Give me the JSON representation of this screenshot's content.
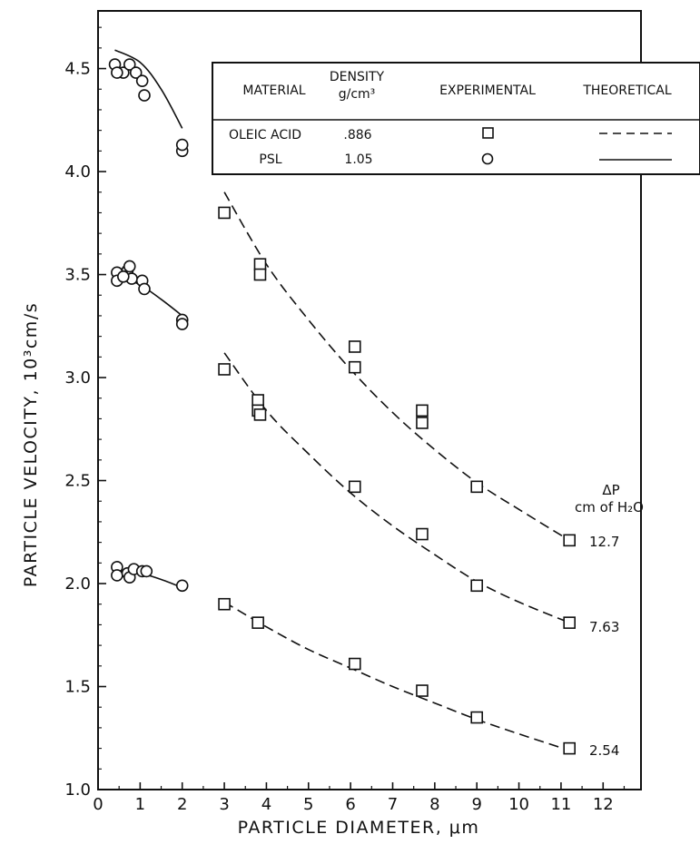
{
  "chart_data": {
    "type": "scatter",
    "xlabel": "PARTICLE DIAMETER,  μm",
    "ylabel": "PARTICLE VELOCITY, 10³cm/s",
    "xlim": [
      0,
      12.9
    ],
    "ylim": [
      1.0,
      4.78
    ],
    "x_ticks": [
      0,
      1,
      2,
      3,
      4,
      5,
      6,
      7,
      8,
      9,
      10,
      11,
      12
    ],
    "x_tick_labels": [
      "0",
      "1",
      "2",
      "3",
      "4",
      "5",
      "6",
      "7",
      "8",
      "9",
      "10",
      "11",
      "12"
    ],
    "y_ticks": [
      1.0,
      1.5,
      2.0,
      2.5,
      3.0,
      3.5,
      4.0,
      4.5
    ],
    "y_tick_labels": [
      "1.0",
      "1.5",
      "2.0",
      "2.5",
      "3.0",
      "3.5",
      "4.0",
      "4.5"
    ],
    "legend": {
      "headers": [
        "MATERIAL",
        "DENSITY",
        "g/cm³",
        "EXPERIMENTAL",
        "THEORETICAL"
      ],
      "rows": [
        {
          "material": "OLEIC ACID",
          "density": ".886",
          "marker": "square",
          "line": "dashed"
        },
        {
          "material": "PSL",
          "density": "1.05",
          "marker": "circle",
          "line": "solid"
        }
      ]
    },
    "pressure_header": {
      "symbol": "ΔP",
      "unit": "cm of H₂O"
    },
    "series": [
      {
        "pressure": "12.7",
        "psl_points": [
          [
            0.4,
            4.52
          ],
          [
            0.6,
            4.48
          ],
          [
            0.75,
            4.52
          ],
          [
            0.9,
            4.48
          ],
          [
            1.05,
            4.44
          ],
          [
            1.1,
            4.37
          ],
          [
            0.45,
            4.48
          ],
          [
            2.0,
            4.1
          ],
          [
            2.0,
            4.13
          ]
        ],
        "psl_theory": [
          [
            0.4,
            4.59
          ],
          [
            1.0,
            4.53
          ],
          [
            1.5,
            4.4
          ],
          [
            2.0,
            4.21
          ]
        ],
        "oleic_points": [
          [
            3.0,
            3.8
          ],
          [
            3.85,
            3.55
          ],
          [
            3.85,
            3.5
          ],
          [
            6.1,
            3.15
          ],
          [
            6.1,
            3.05
          ],
          [
            7.7,
            2.84
          ],
          [
            7.7,
            2.78
          ],
          [
            9.0,
            2.47
          ],
          [
            11.2,
            2.21
          ]
        ],
        "oleic_theory": [
          [
            3.0,
            3.9
          ],
          [
            4.0,
            3.55
          ],
          [
            5.0,
            3.28
          ],
          [
            6.0,
            3.04
          ],
          [
            7.0,
            2.83
          ],
          [
            8.0,
            2.65
          ],
          [
            9.0,
            2.49
          ],
          [
            10.0,
            2.36
          ],
          [
            11.2,
            2.21
          ]
        ]
      },
      {
        "pressure": "7.63",
        "psl_points": [
          [
            0.45,
            3.51
          ],
          [
            0.45,
            3.47
          ],
          [
            0.7,
            3.52
          ],
          [
            0.75,
            3.54
          ],
          [
            0.8,
            3.48
          ],
          [
            1.05,
            3.47
          ],
          [
            1.1,
            3.43
          ],
          [
            0.6,
            3.49
          ],
          [
            2.0,
            3.28
          ],
          [
            2.0,
            3.26
          ]
        ],
        "psl_theory": [
          [
            0.5,
            3.49
          ],
          [
            1.0,
            3.45
          ],
          [
            1.5,
            3.38
          ],
          [
            2.0,
            3.3
          ]
        ],
        "oleic_points": [
          [
            3.0,
            3.04
          ],
          [
            3.8,
            2.89
          ],
          [
            3.8,
            2.84
          ],
          [
            3.85,
            2.82
          ],
          [
            6.1,
            2.47
          ],
          [
            7.7,
            2.24
          ],
          [
            9.0,
            1.99
          ],
          [
            11.2,
            1.81
          ]
        ],
        "oleic_theory": [
          [
            3.0,
            3.12
          ],
          [
            4.0,
            2.84
          ],
          [
            5.0,
            2.63
          ],
          [
            6.0,
            2.44
          ],
          [
            7.0,
            2.28
          ],
          [
            8.0,
            2.14
          ],
          [
            9.0,
            2.01
          ],
          [
            10.0,
            1.91
          ],
          [
            11.2,
            1.81
          ]
        ]
      },
      {
        "pressure": "2.54",
        "psl_points": [
          [
            0.45,
            2.08
          ],
          [
            0.45,
            2.04
          ],
          [
            0.7,
            2.05
          ],
          [
            0.75,
            2.03
          ],
          [
            0.85,
            2.07
          ],
          [
            1.05,
            2.06
          ],
          [
            1.15,
            2.06
          ],
          [
            2.0,
            1.99
          ]
        ],
        "psl_theory": [
          [
            0.5,
            2.06
          ],
          [
            1.0,
            2.05
          ],
          [
            1.5,
            2.02
          ],
          [
            2.0,
            1.98
          ]
        ],
        "oleic_points": [
          [
            3.0,
            1.9
          ],
          [
            3.8,
            1.81
          ],
          [
            6.1,
            1.61
          ],
          [
            7.7,
            1.48
          ],
          [
            9.0,
            1.35
          ],
          [
            11.2,
            1.2
          ]
        ],
        "oleic_theory": [
          [
            3.0,
            1.91
          ],
          [
            4.0,
            1.79
          ],
          [
            5.0,
            1.68
          ],
          [
            6.0,
            1.59
          ],
          [
            7.0,
            1.5
          ],
          [
            8.0,
            1.42
          ],
          [
            9.0,
            1.34
          ],
          [
            10.0,
            1.27
          ],
          [
            11.2,
            1.19
          ]
        ]
      }
    ]
  }
}
